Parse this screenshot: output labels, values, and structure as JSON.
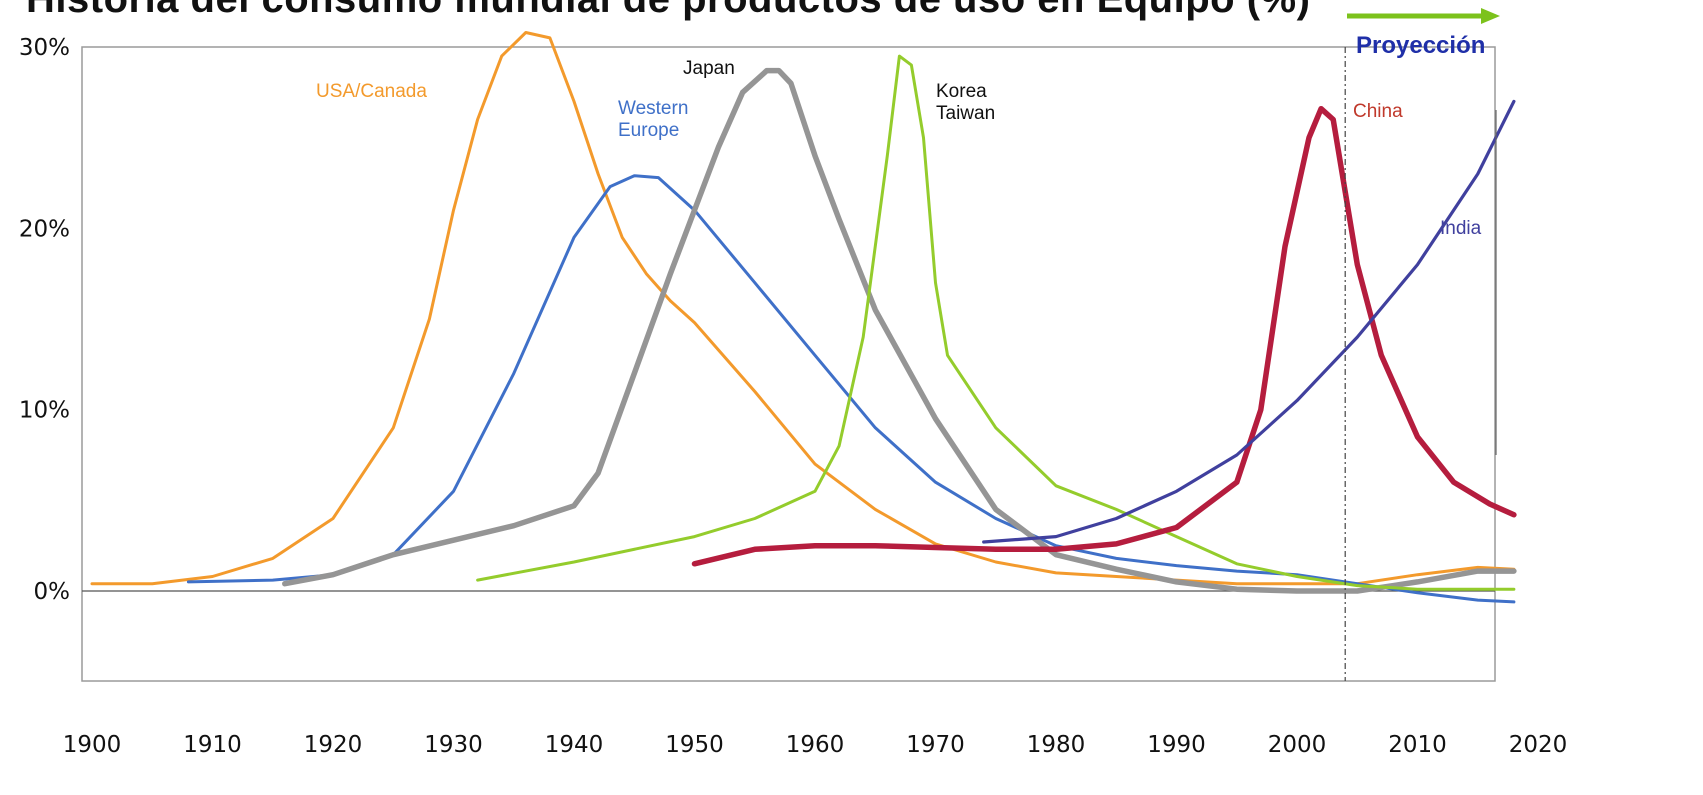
{
  "chart_data": {
    "type": "line",
    "title": "Historia del consumo mundial de productos de uso en Equipo (%)",
    "xlabel": "",
    "ylabel": "",
    "xlim": [
      1900,
      2020
    ],
    "ylim": [
      -5,
      30
    ],
    "x_ticks": [
      "1900",
      "1910",
      "1920",
      "1930",
      "1940",
      "1950",
      "1960",
      "1970",
      "1980",
      "1990",
      "2000",
      "2010",
      "2020"
    ],
    "y_ticks": [
      "0%",
      "10%",
      "20%",
      "30%"
    ],
    "grid": false,
    "projection_start": 2004,
    "projection_label": "Proyección",
    "series": [
      {
        "name": "USA/Canada",
        "color": "#f39a2c",
        "label_lines": [
          "USA/Canada"
        ],
        "points": [
          [
            1900,
            0.4
          ],
          [
            1905,
            0.4
          ],
          [
            1910,
            0.8
          ],
          [
            1915,
            1.8
          ],
          [
            1920,
            4.0
          ],
          [
            1925,
            9.0
          ],
          [
            1928,
            15.0
          ],
          [
            1930,
            21.0
          ],
          [
            1932,
            26.0
          ],
          [
            1934,
            29.5
          ],
          [
            1936,
            30.8
          ],
          [
            1938,
            30.5
          ],
          [
            1940,
            27.0
          ],
          [
            1942,
            23.0
          ],
          [
            1944,
            19.5
          ],
          [
            1946,
            17.5
          ],
          [
            1948,
            16.0
          ],
          [
            1950,
            14.8
          ],
          [
            1955,
            11.0
          ],
          [
            1960,
            7.0
          ],
          [
            1965,
            4.5
          ],
          [
            1970,
            2.6
          ],
          [
            1975,
            1.6
          ],
          [
            1980,
            1.0
          ],
          [
            1985,
            0.8
          ],
          [
            1990,
            0.6
          ],
          [
            1995,
            0.4
          ],
          [
            2000,
            0.4
          ],
          [
            2005,
            0.4
          ],
          [
            2010,
            0.9
          ],
          [
            2015,
            1.3
          ],
          [
            2018,
            1.2
          ]
        ]
      },
      {
        "name": "Western Europe",
        "color": "#3f70c8",
        "label_lines": [
          "Western",
          "Europe"
        ],
        "points": [
          [
            1908,
            0.5
          ],
          [
            1915,
            0.6
          ],
          [
            1920,
            0.9
          ],
          [
            1925,
            2.0
          ],
          [
            1930,
            5.5
          ],
          [
            1935,
            12.0
          ],
          [
            1940,
            19.5
          ],
          [
            1943,
            22.3
          ],
          [
            1945,
            22.9
          ],
          [
            1947,
            22.8
          ],
          [
            1950,
            21.0
          ],
          [
            1955,
            17.0
          ],
          [
            1960,
            13.0
          ],
          [
            1965,
            9.0
          ],
          [
            1970,
            6.0
          ],
          [
            1975,
            4.0
          ],
          [
            1980,
            2.5
          ],
          [
            1985,
            1.8
          ],
          [
            1990,
            1.4
          ],
          [
            1995,
            1.1
          ],
          [
            2000,
            0.9
          ],
          [
            2005,
            0.4
          ],
          [
            2010,
            -0.1
          ],
          [
            2015,
            -0.5
          ],
          [
            2018,
            -0.6
          ]
        ]
      },
      {
        "name": "Japan",
        "color": "#959595",
        "label_lines": [
          "Japan"
        ],
        "points": [
          [
            1916,
            0.4
          ],
          [
            1920,
            0.9
          ],
          [
            1925,
            2.0
          ],
          [
            1930,
            2.8
          ],
          [
            1935,
            3.6
          ],
          [
            1940,
            4.7
          ],
          [
            1942,
            6.5
          ],
          [
            1945,
            12.0
          ],
          [
            1948,
            17.5
          ],
          [
            1950,
            21.0
          ],
          [
            1952,
            24.5
          ],
          [
            1954,
            27.5
          ],
          [
            1956,
            28.7
          ],
          [
            1957,
            28.7
          ],
          [
            1958,
            28.0
          ],
          [
            1960,
            24.0
          ],
          [
            1962,
            20.5
          ],
          [
            1965,
            15.5
          ],
          [
            1970,
            9.5
          ],
          [
            1975,
            4.5
          ],
          [
            1980,
            2.0
          ],
          [
            1985,
            1.2
          ],
          [
            1990,
            0.5
          ],
          [
            1995,
            0.1
          ],
          [
            2000,
            0.0
          ],
          [
            2005,
            0.0
          ],
          [
            2010,
            0.5
          ],
          [
            2015,
            1.1
          ],
          [
            2018,
            1.1
          ]
        ]
      },
      {
        "name": "Korea Taiwan",
        "color": "#94cc2c",
        "label_lines": [
          "Korea",
          "Taiwan"
        ],
        "points": [
          [
            1932,
            0.6
          ],
          [
            1940,
            1.6
          ],
          [
            1950,
            3.0
          ],
          [
            1955,
            4.0
          ],
          [
            1960,
            5.5
          ],
          [
            1962,
            8.0
          ],
          [
            1964,
            14.0
          ],
          [
            1966,
            24.0
          ],
          [
            1967,
            29.5
          ],
          [
            1968,
            29.0
          ],
          [
            1969,
            25.0
          ],
          [
            1970,
            17.0
          ],
          [
            1971,
            13.0
          ],
          [
            1975,
            9.0
          ],
          [
            1980,
            5.8
          ],
          [
            1985,
            4.5
          ],
          [
            1990,
            3.0
          ],
          [
            1995,
            1.5
          ],
          [
            2000,
            0.8
          ],
          [
            2005,
            0.3
          ],
          [
            2010,
            0.1
          ],
          [
            2015,
            0.1
          ],
          [
            2018,
            0.1
          ]
        ]
      },
      {
        "name": "China",
        "color": "#b51d3e",
        "label_lines": [
          "China"
        ],
        "points": [
          [
            1950,
            1.5
          ],
          [
            1955,
            2.3
          ],
          [
            1960,
            2.5
          ],
          [
            1965,
            2.5
          ],
          [
            1970,
            2.4
          ],
          [
            1975,
            2.3
          ],
          [
            1980,
            2.3
          ],
          [
            1985,
            2.6
          ],
          [
            1990,
            3.5
          ],
          [
            1995,
            6.0
          ],
          [
            1997,
            10.0
          ],
          [
            1999,
            19.0
          ],
          [
            2001,
            25.0
          ],
          [
            2002,
            26.6
          ],
          [
            2003,
            26.0
          ],
          [
            2005,
            18.0
          ],
          [
            2007,
            13.0
          ],
          [
            2010,
            8.5
          ],
          [
            2013,
            6.0
          ],
          [
            2016,
            4.8
          ],
          [
            2018,
            4.2
          ]
        ]
      },
      {
        "name": "India",
        "color": "#40409e",
        "label_lines": [
          "India"
        ],
        "points": [
          [
            1974,
            2.7
          ],
          [
            1980,
            3.0
          ],
          [
            1985,
            4.0
          ],
          [
            1990,
            5.5
          ],
          [
            1995,
            7.5
          ],
          [
            2000,
            10.5
          ],
          [
            2005,
            14.0
          ],
          [
            2010,
            18.0
          ],
          [
            2015,
            23.0
          ],
          [
            2018,
            27.0
          ]
        ]
      }
    ]
  }
}
